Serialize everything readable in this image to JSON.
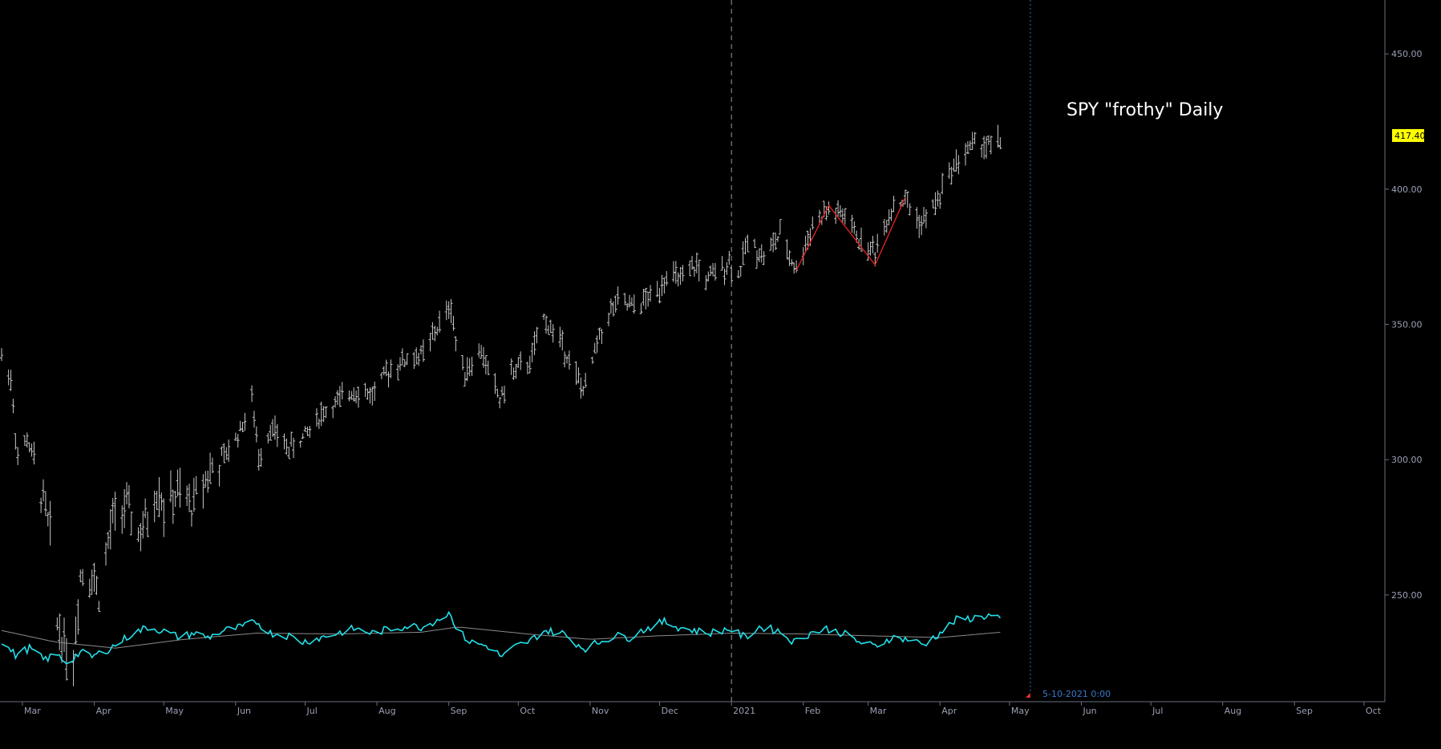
{
  "chart_data": {
    "type": "bar",
    "title": "SPY \"frothy\" Daily",
    "last_price_label": "417.40",
    "cursor_label": "5-10-2021 0:00",
    "y_ticks": [
      "450.00",
      "400.00",
      "350.00",
      "300.00",
      "250.00"
    ],
    "y_tick_values": [
      450,
      400,
      350,
      300,
      250
    ],
    "ylim": [
      212,
      464
    ],
    "x_tick_labels": [
      "Mar",
      "Apr",
      "May",
      "Jun",
      "Jul",
      "Aug",
      "Sep",
      "Oct",
      "Nov",
      "Dec",
      "2021",
      "Feb",
      "Mar",
      "Apr",
      "May",
      "Jun",
      "Jul",
      "Aug",
      "Sep",
      "Oct"
    ],
    "x_tick_dates": [
      "2020-03-01",
      "2020-04-01",
      "2020-05-01",
      "2020-06-01",
      "2020-07-01",
      "2020-08-01",
      "2020-09-01",
      "2020-10-01",
      "2020-11-01",
      "2020-12-01",
      "2021-01-01",
      "2021-02-01",
      "2021-03-01",
      "2021-04-01",
      "2021-05-01",
      "2021-06-01",
      "2021-07-01",
      "2021-08-01",
      "2021-09-01",
      "2021-10-01"
    ],
    "x_range": [
      "2020-02-21",
      "2021-10-10"
    ],
    "year_divider_date": "2021-01-01",
    "cursor_date": "2021-05-10",
    "grid": false,
    "price_path": [
      [
        "2020-02-21",
        338
      ],
      [
        "2020-02-25",
        330
      ],
      [
        "2020-02-28",
        300
      ],
      [
        "2020-03-03",
        308
      ],
      [
        "2020-03-06",
        298
      ],
      [
        "2020-03-10",
        285
      ],
      [
        "2020-03-13",
        272
      ],
      [
        "2020-03-16",
        240
      ],
      [
        "2020-03-20",
        230
      ],
      [
        "2020-03-23",
        226
      ],
      [
        "2020-03-26",
        258
      ],
      [
        "2020-03-31",
        258
      ],
      [
        "2020-04-03",
        250
      ],
      [
        "2020-04-09",
        278
      ],
      [
        "2020-04-14",
        283
      ],
      [
        "2020-04-21",
        272
      ],
      [
        "2020-04-29",
        290
      ],
      [
        "2020-05-01",
        282
      ],
      [
        "2020-05-07",
        287
      ],
      [
        "2020-05-13",
        283
      ],
      [
        "2020-05-19",
        294
      ],
      [
        "2020-05-26",
        299
      ],
      [
        "2020-06-03",
        311
      ],
      [
        "2020-06-08",
        322
      ],
      [
        "2020-06-11",
        301
      ],
      [
        "2020-06-16",
        312
      ],
      [
        "2020-06-24",
        304
      ],
      [
        "2020-06-30",
        308
      ],
      [
        "2020-07-08",
        317
      ],
      [
        "2020-07-15",
        321
      ],
      [
        "2020-07-22",
        326
      ],
      [
        "2020-07-30",
        324
      ],
      [
        "2020-08-07",
        334
      ],
      [
        "2020-08-14",
        337
      ],
      [
        "2020-08-21",
        339
      ],
      [
        "2020-08-28",
        350
      ],
      [
        "2020-09-02",
        357
      ],
      [
        "2020-09-04",
        343
      ],
      [
        "2020-09-08",
        333
      ],
      [
        "2020-09-15",
        340
      ],
      [
        "2020-09-23",
        322
      ],
      [
        "2020-09-28",
        332
      ],
      [
        "2020-10-06",
        336
      ],
      [
        "2020-10-12",
        352
      ],
      [
        "2020-10-20",
        343
      ],
      [
        "2020-10-28",
        327
      ],
      [
        "2020-10-30",
        326
      ],
      [
        "2020-11-04",
        343
      ],
      [
        "2020-11-09",
        354
      ],
      [
        "2020-11-13",
        358
      ],
      [
        "2020-11-20",
        356
      ],
      [
        "2020-11-30",
        362
      ],
      [
        "2020-12-04",
        369
      ],
      [
        "2020-12-11",
        366
      ],
      [
        "2020-12-17",
        372
      ],
      [
        "2020-12-21",
        366
      ],
      [
        "2020-12-31",
        373
      ],
      [
        "2021-01-04",
        368
      ],
      [
        "2021-01-08",
        381
      ],
      [
        "2021-01-15",
        375
      ],
      [
        "2021-01-22",
        383
      ],
      [
        "2021-01-29",
        370
      ],
      [
        "2021-02-05",
        387
      ],
      [
        "2021-02-12",
        392
      ],
      [
        "2021-02-19",
        390
      ],
      [
        "2021-02-26",
        380
      ],
      [
        "2021-03-04",
        377
      ],
      [
        "2021-03-11",
        393
      ],
      [
        "2021-03-17",
        396
      ],
      [
        "2021-03-24",
        387
      ],
      [
        "2021-03-31",
        396
      ],
      [
        "2021-04-05",
        406
      ],
      [
        "2021-04-09",
        411
      ],
      [
        "2021-04-16",
        417
      ],
      [
        "2021-04-23",
        416
      ],
      [
        "2021-04-27",
        418
      ]
    ],
    "pattern_lines": [
      {
        "points": [
          [
            "2021-01-29",
            370
          ],
          [
            "2021-02-12",
            394
          ],
          [
            "2021-03-04",
            372
          ],
          [
            "2021-03-17",
            397
          ]
        ],
        "color": "#e02020"
      }
    ],
    "oscillator_yrange": [
      0,
      100
    ],
    "oscillator": {
      "name": "",
      "color": "#22e0e8",
      "points": [
        [
          "2020-02-21",
          45
        ],
        [
          "2020-02-27",
          30
        ],
        [
          "2020-03-04",
          38
        ],
        [
          "2020-03-10",
          25
        ],
        [
          "2020-03-16",
          30
        ],
        [
          "2020-03-20",
          22
        ],
        [
          "2020-03-26",
          33
        ],
        [
          "2020-03-31",
          28
        ],
        [
          "2020-04-08",
          38
        ],
        [
          "2020-04-16",
          52
        ],
        [
          "2020-04-24",
          62
        ],
        [
          "2020-04-30",
          58
        ],
        [
          "2020-05-08",
          50
        ],
        [
          "2020-05-14",
          55
        ],
        [
          "2020-05-20",
          50
        ],
        [
          "2020-05-27",
          58
        ],
        [
          "2020-06-04",
          62
        ],
        [
          "2020-06-10",
          68
        ],
        [
          "2020-06-16",
          55
        ],
        [
          "2020-06-24",
          52
        ],
        [
          "2020-06-30",
          45
        ],
        [
          "2020-07-08",
          50
        ],
        [
          "2020-07-15",
          55
        ],
        [
          "2020-07-22",
          60
        ],
        [
          "2020-07-30",
          55
        ],
        [
          "2020-08-07",
          60
        ],
        [
          "2020-08-14",
          63
        ],
        [
          "2020-08-21",
          62
        ],
        [
          "2020-08-28",
          72
        ],
        [
          "2020-09-02",
          78
        ],
        [
          "2020-09-04",
          60
        ],
        [
          "2020-09-10",
          45
        ],
        [
          "2020-09-18",
          40
        ],
        [
          "2020-09-24",
          28
        ],
        [
          "2020-09-30",
          40
        ],
        [
          "2020-10-06",
          46
        ],
        [
          "2020-10-12",
          58
        ],
        [
          "2020-10-20",
          55
        ],
        [
          "2020-10-28",
          40
        ],
        [
          "2020-10-30",
          38
        ],
        [
          "2020-11-05",
          45
        ],
        [
          "2020-11-12",
          52
        ],
        [
          "2020-11-18",
          50
        ],
        [
          "2020-11-25",
          60
        ],
        [
          "2020-12-03",
          68
        ],
        [
          "2020-12-09",
          62
        ],
        [
          "2020-12-16",
          58
        ],
        [
          "2020-12-22",
          55
        ],
        [
          "2020-12-31",
          60
        ],
        [
          "2021-01-07",
          50
        ],
        [
          "2021-01-13",
          62
        ],
        [
          "2021-01-21",
          58
        ],
        [
          "2021-01-28",
          45
        ],
        [
          "2021-02-04",
          55
        ],
        [
          "2021-02-11",
          60
        ],
        [
          "2021-02-18",
          55
        ],
        [
          "2021-02-25",
          45
        ],
        [
          "2021-03-04",
          40
        ],
        [
          "2021-03-11",
          50
        ],
        [
          "2021-03-18",
          48
        ],
        [
          "2021-03-25",
          42
        ],
        [
          "2021-04-01",
          55
        ],
        [
          "2021-04-08",
          70
        ],
        [
          "2021-04-15",
          72
        ],
        [
          "2021-04-22",
          75
        ],
        [
          "2021-04-27",
          72
        ]
      ]
    },
    "oscillator_signal": {
      "name": "",
      "color": "#8a8a8a",
      "points": [
        [
          "2020-02-21",
          58
        ],
        [
          "2020-03-15",
          45
        ],
        [
          "2020-04-10",
          38
        ],
        [
          "2020-05-10",
          48
        ],
        [
          "2020-06-10",
          55
        ],
        [
          "2020-07-15",
          54
        ],
        [
          "2020-08-20",
          56
        ],
        [
          "2020-09-05",
          62
        ],
        [
          "2020-10-05",
          54
        ],
        [
          "2020-11-01",
          48
        ],
        [
          "2020-12-01",
          52
        ],
        [
          "2021-01-01",
          55
        ],
        [
          "2021-02-01",
          54
        ],
        [
          "2021-03-01",
          52
        ],
        [
          "2021-04-01",
          50
        ],
        [
          "2021-04-27",
          56
        ]
      ]
    }
  }
}
